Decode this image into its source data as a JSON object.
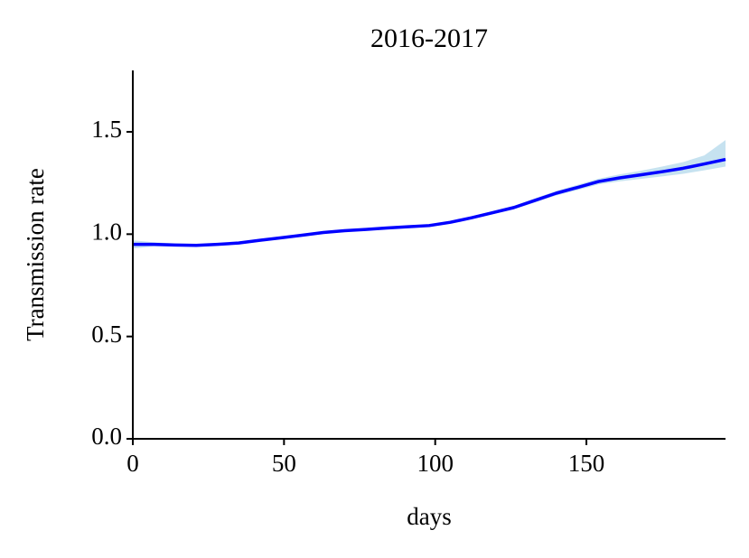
{
  "chart_data": {
    "type": "line",
    "title": "2016-2017",
    "xlabel": "days",
    "ylabel": "Transmission rate",
    "x": [
      0,
      7,
      14,
      21,
      28,
      35,
      42,
      49,
      56,
      63,
      70,
      77,
      84,
      91,
      98,
      105,
      112,
      119,
      126,
      133,
      140,
      147,
      154,
      161,
      168,
      175,
      182,
      189,
      196
    ],
    "series": [
      {
        "color": "#0000ff",
        "values": [
          0.95,
          0.95,
          0.947,
          0.945,
          0.95,
          0.957,
          0.97,
          0.982,
          0.995,
          1.008,
          1.017,
          1.023,
          1.03,
          1.036,
          1.042,
          1.058,
          1.08,
          1.105,
          1.13,
          1.165,
          1.2,
          1.228,
          1.257,
          1.275,
          1.29,
          1.305,
          1.322,
          1.343,
          1.365
        ]
      }
    ],
    "band": {
      "color": "#c6e2f0",
      "lower": [
        0.93,
        0.94,
        0.94,
        0.94,
        0.945,
        0.952,
        0.965,
        0.977,
        0.99,
        1.003,
        1.012,
        1.018,
        1.025,
        1.031,
        1.037,
        1.052,
        1.073,
        1.097,
        1.121,
        1.155,
        1.189,
        1.215,
        1.243,
        1.258,
        1.27,
        1.282,
        1.295,
        1.312,
        1.33
      ],
      "upper": [
        0.97,
        0.96,
        0.955,
        0.952,
        0.956,
        0.962,
        0.975,
        0.987,
        1.0,
        1.013,
        1.022,
        1.028,
        1.035,
        1.041,
        1.047,
        1.064,
        1.087,
        1.113,
        1.139,
        1.175,
        1.211,
        1.241,
        1.271,
        1.292,
        1.31,
        1.33,
        1.352,
        1.385,
        1.46
      ]
    },
    "xlim": [
      0,
      196
    ],
    "ylim": [
      0,
      1.8
    ],
    "xticks": [
      0,
      50,
      100,
      150
    ],
    "yticks": [
      {
        "value": 0,
        "label": "0.0"
      },
      0.5,
      {
        "value": 1,
        "label": "1.0"
      },
      1.5
    ]
  }
}
